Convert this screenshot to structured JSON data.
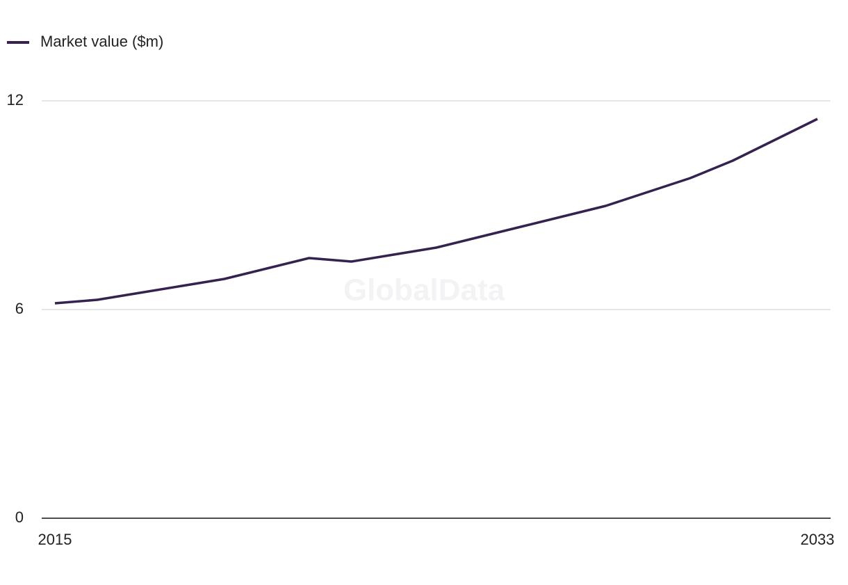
{
  "chart_data": {
    "type": "line",
    "watermark": "GlobalData",
    "x": [
      2015,
      2016,
      2017,
      2018,
      2019,
      2020,
      2021,
      2022,
      2023,
      2024,
      2025,
      2026,
      2027,
      2028,
      2029,
      2030,
      2031,
      2032,
      2033
    ],
    "series": [
      {
        "name": "Market value ($m)",
        "color": "#35224f",
        "values": [
          6.18,
          6.28,
          6.48,
          6.68,
          6.88,
          7.18,
          7.48,
          7.38,
          7.58,
          7.78,
          8.08,
          8.38,
          8.68,
          8.98,
          9.38,
          9.78,
          10.28,
          10.88,
          11.48
        ]
      }
    ],
    "xlim": [
      2015,
      2033
    ],
    "xticks": [
      2015,
      2033
    ],
    "ylim": [
      0,
      12
    ],
    "yticks": [
      0,
      6,
      12
    ],
    "grid": true,
    "legend": "top-left"
  }
}
